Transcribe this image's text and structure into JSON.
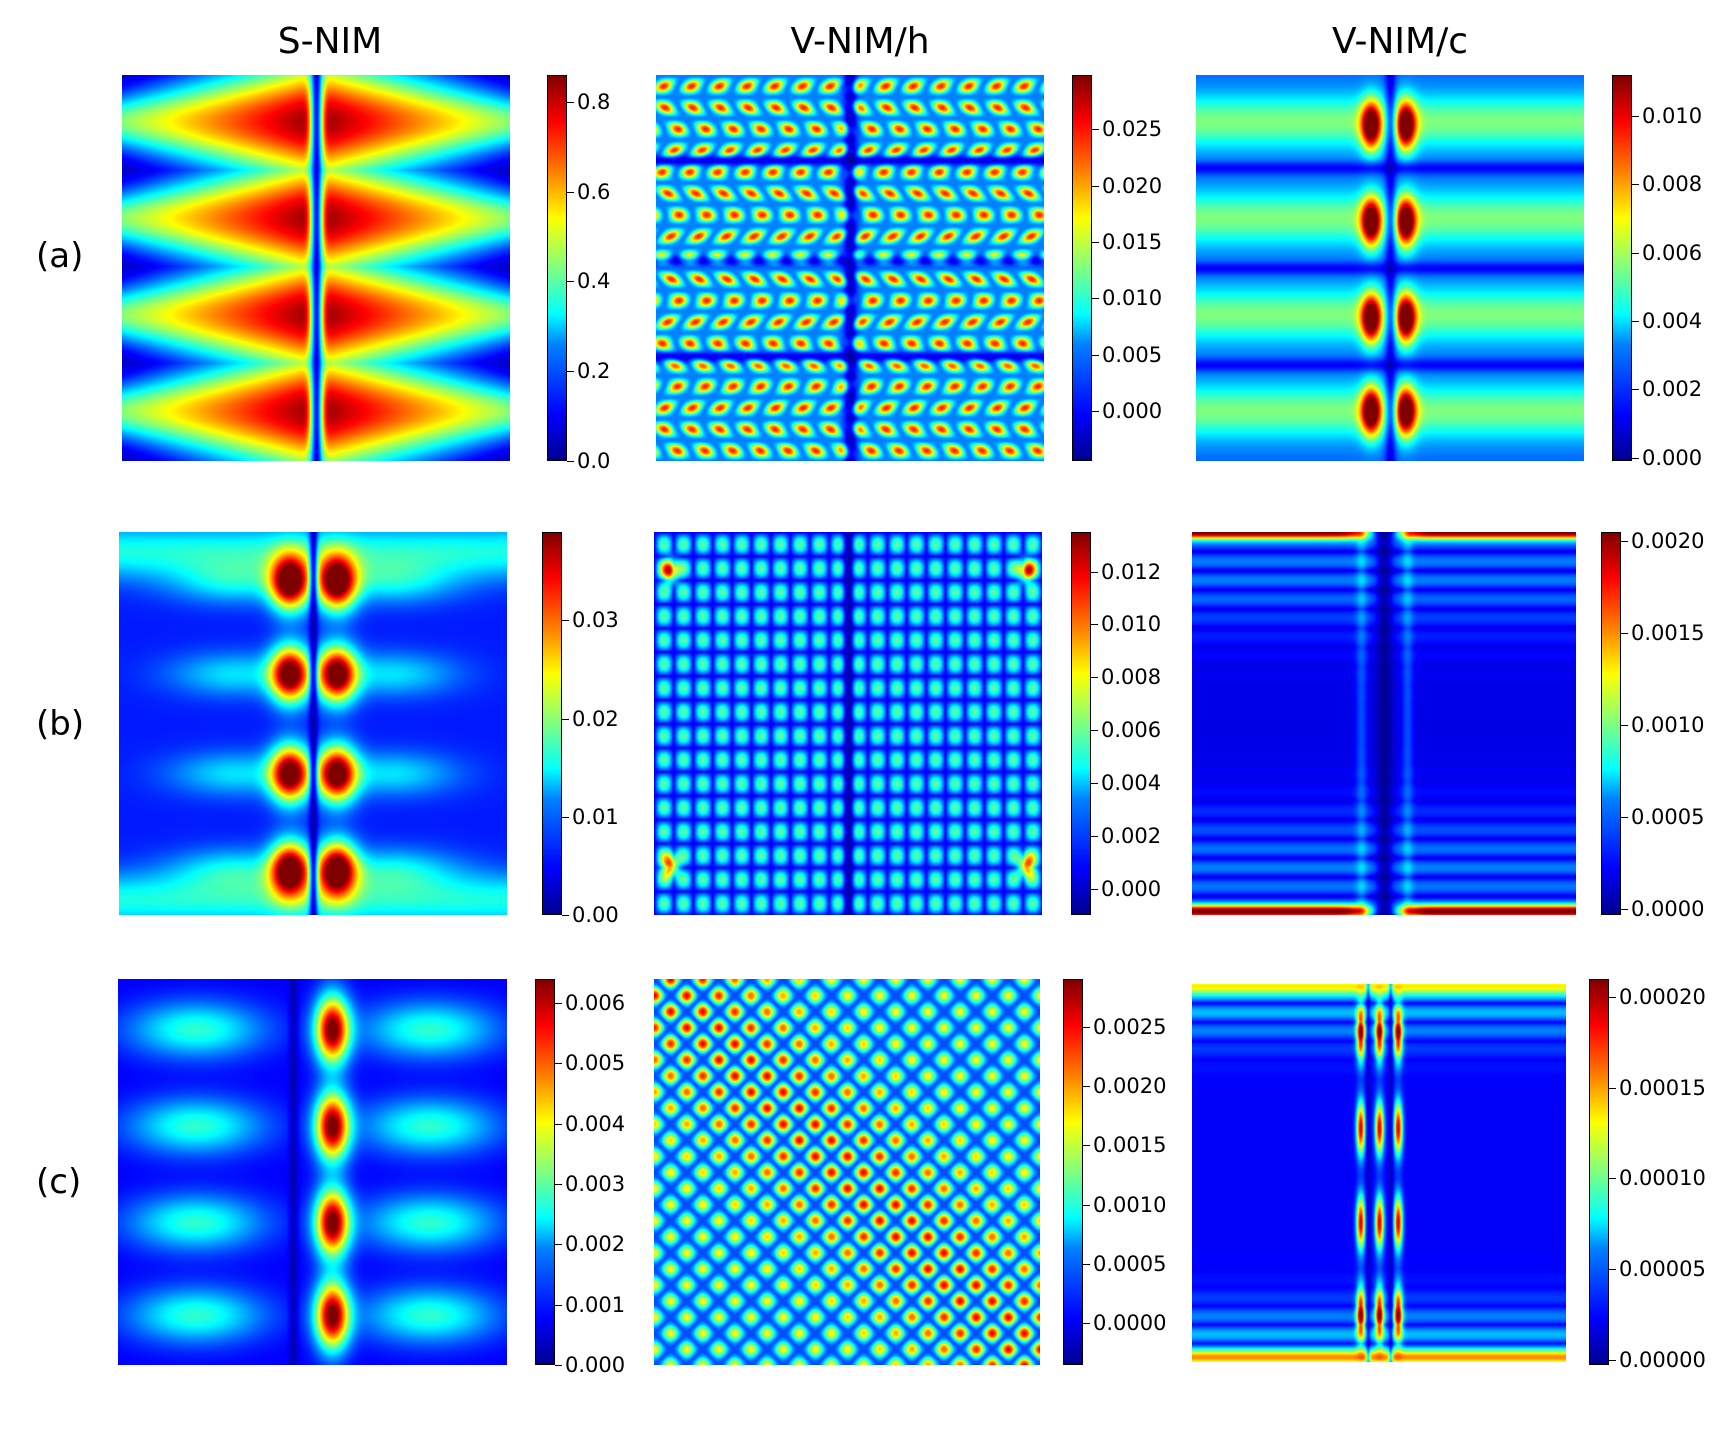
{
  "columns": [
    "S-NIM",
    "V-NIM/h",
    "V-NIM/c"
  ],
  "rows": [
    "(a)",
    "(b)",
    "(c)"
  ],
  "chart_data": [
    {
      "type": "heatmap",
      "column": "S-NIM",
      "row": "(a)",
      "colormap": "jet",
      "clim": [
        0.0,
        0.86
      ],
      "colorbar_ticks": [
        0.0,
        0.2,
        0.4,
        0.6,
        0.8
      ],
      "colorbar_tick_labels": [
        "0.0",
        "0.2",
        "0.4",
        "0.6",
        "0.8"
      ]
    },
    {
      "type": "heatmap",
      "column": "V-NIM/h",
      "row": "(a)",
      "colormap": "jet",
      "clim": [
        -0.0044,
        0.0298
      ],
      "colorbar_ticks": [
        0.0,
        0.005,
        0.01,
        0.015,
        0.02,
        0.025
      ],
      "colorbar_tick_labels": [
        "0.000",
        "0.005",
        "0.010",
        "0.015",
        "0.020",
        "0.025"
      ]
    },
    {
      "type": "heatmap",
      "column": "V-NIM/c",
      "row": "(a)",
      "colormap": "jet",
      "clim": [
        -0.0001,
        0.0112
      ],
      "colorbar_ticks": [
        0.0,
        0.002,
        0.004,
        0.006,
        0.008,
        0.01
      ],
      "colorbar_tick_labels": [
        "0.000",
        "0.002",
        "0.004",
        "0.006",
        "0.008",
        "0.010"
      ]
    },
    {
      "type": "heatmap",
      "column": "S-NIM",
      "row": "(b)",
      "colormap": "jet",
      "clim": [
        0.0,
        0.039
      ],
      "colorbar_ticks": [
        0.0,
        0.01,
        0.02,
        0.03
      ],
      "colorbar_tick_labels": [
        "0.00",
        "0.01",
        "0.02",
        "0.03"
      ]
    },
    {
      "type": "heatmap",
      "column": "V-NIM/h",
      "row": "(b)",
      "colormap": "jet",
      "clim": [
        -0.001,
        0.0135
      ],
      "colorbar_ticks": [
        0.0,
        0.002,
        0.004,
        0.006,
        0.008,
        0.01,
        0.012
      ],
      "colorbar_tick_labels": [
        "0.000",
        "0.002",
        "0.004",
        "0.006",
        "0.008",
        "0.010",
        "0.012"
      ]
    },
    {
      "type": "heatmap",
      "column": "V-NIM/c",
      "row": "(b)",
      "colormap": "jet",
      "clim": [
        -3e-05,
        0.00205
      ],
      "colorbar_ticks": [
        0.0,
        0.0005,
        0.001,
        0.0015,
        0.002
      ],
      "colorbar_tick_labels": [
        "0.0000",
        "0.0005",
        "0.0010",
        "0.0015",
        "0.0020"
      ]
    },
    {
      "type": "heatmap",
      "column": "S-NIM",
      "row": "(c)",
      "colormap": "jet",
      "clim": [
        0.0,
        0.0064
      ],
      "colorbar_ticks": [
        0.0,
        0.001,
        0.002,
        0.003,
        0.004,
        0.005,
        0.006
      ],
      "colorbar_tick_labels": [
        "0.000",
        "0.001",
        "0.002",
        "0.003",
        "0.004",
        "0.005",
        "0.006"
      ]
    },
    {
      "type": "heatmap",
      "column": "V-NIM/h",
      "row": "(c)",
      "colormap": "jet",
      "clim": [
        -0.00035,
        0.0029
      ],
      "colorbar_ticks": [
        0.0,
        0.0005,
        0.001,
        0.0015,
        0.002,
        0.0025
      ],
      "colorbar_tick_labels": [
        "0.0000",
        "0.0005",
        "0.0010",
        "0.0015",
        "0.0020",
        "0.0025"
      ]
    },
    {
      "type": "heatmap",
      "column": "V-NIM/c",
      "row": "(c)",
      "colormap": "jet",
      "clim": [
        -3e-06,
        0.00021
      ],
      "colorbar_ticks": [
        0.0,
        5e-05,
        0.0001,
        0.00015,
        0.0002
      ],
      "colorbar_tick_labels": [
        "0.00000",
        "0.00005",
        "0.00010",
        "0.00015",
        "0.00020"
      ]
    }
  ]
}
